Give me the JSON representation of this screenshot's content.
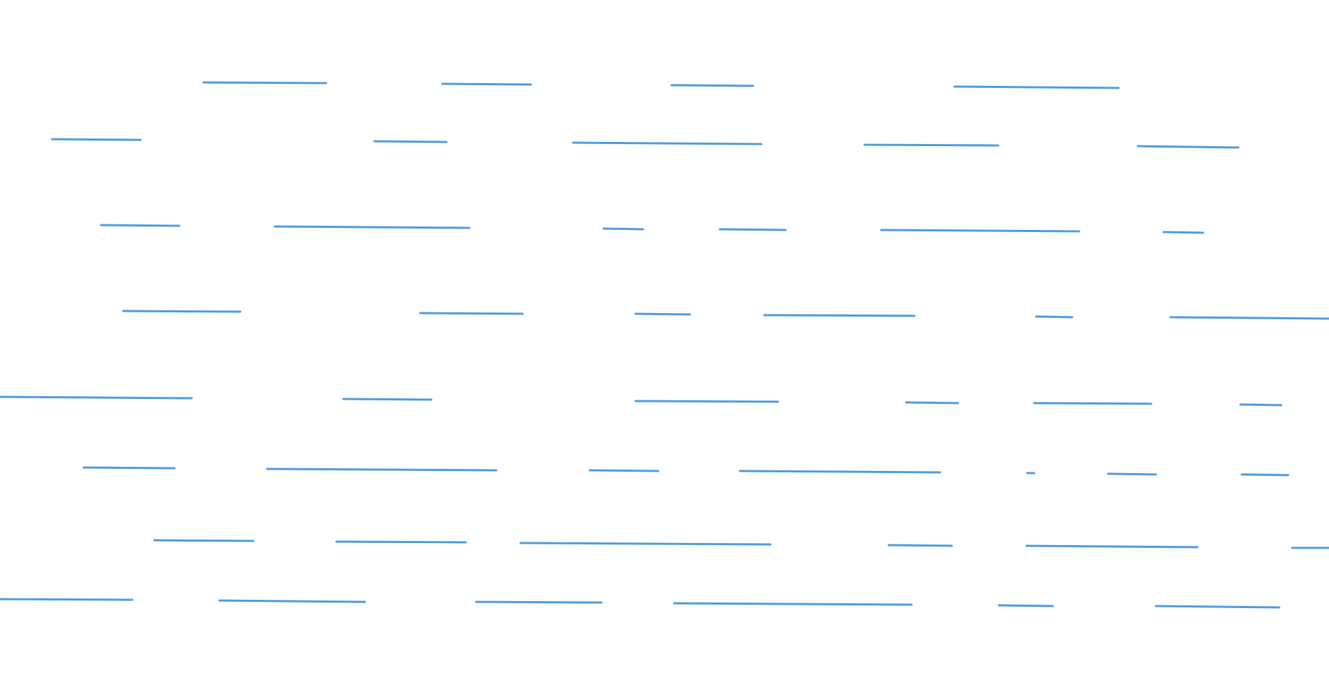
{
  "page": {
    "background": "#ffffff"
  },
  "pattern": {
    "stroke_color": "#4d9be0",
    "segment_rows": 8
  }
}
